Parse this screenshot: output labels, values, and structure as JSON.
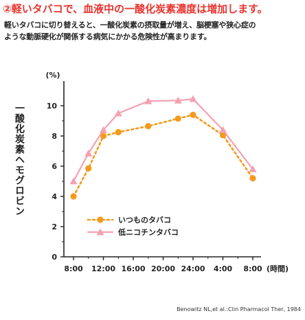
{
  "heading": "②軽いタバコで、血液中の一酸化炭素濃度は増加します。",
  "body_lines": [
    "軽いタバコに切り替えると、一酸化炭素の摂取量が増え、脳梗塞や狭心症の",
    "ような動脈硬化が関係する病気にかかる危険性が高まります。"
  ],
  "source": "Benowitz NL,et al.:Clin Pharmacol Ther, 1984",
  "colors": {
    "heading": "#e8342f",
    "series_regular": "#f39b1c",
    "series_low": "#f4a1b2"
  },
  "chart_data": {
    "type": "line",
    "unit_label": "(%)",
    "ylabel": "一酸化炭素ヘモグロビン",
    "xlabel": "(時間)",
    "x_ticks": [
      "8:00",
      "12:00",
      "16:00",
      "20:00",
      "24:00",
      "4:00",
      "8:00"
    ],
    "ylim": [
      0,
      10
    ],
    "y_ticks": [
      0,
      2,
      4,
      6,
      8,
      10
    ],
    "grid": false,
    "legend_position": "lower-left",
    "series": [
      {
        "name": "いつものタバコ",
        "style": "dotted-circle",
        "x": [
          "8:00",
          "10:00",
          "12:00",
          "14:00",
          "18:00",
          "22:00",
          "24:00",
          "4:00",
          "8:00"
        ],
        "values": [
          4.0,
          5.85,
          8.0,
          8.25,
          8.65,
          9.15,
          9.4,
          8.05,
          5.2
        ]
      },
      {
        "name": "低ニコチンタバコ",
        "style": "solid-triangle",
        "x": [
          "8:00",
          "10:00",
          "12:00",
          "14:00",
          "18:00",
          "22:00",
          "24:00",
          "4:00",
          "8:00"
        ],
        "values": [
          5.0,
          6.85,
          8.4,
          9.5,
          10.3,
          10.35,
          10.45,
          8.4,
          5.8
        ]
      }
    ]
  }
}
